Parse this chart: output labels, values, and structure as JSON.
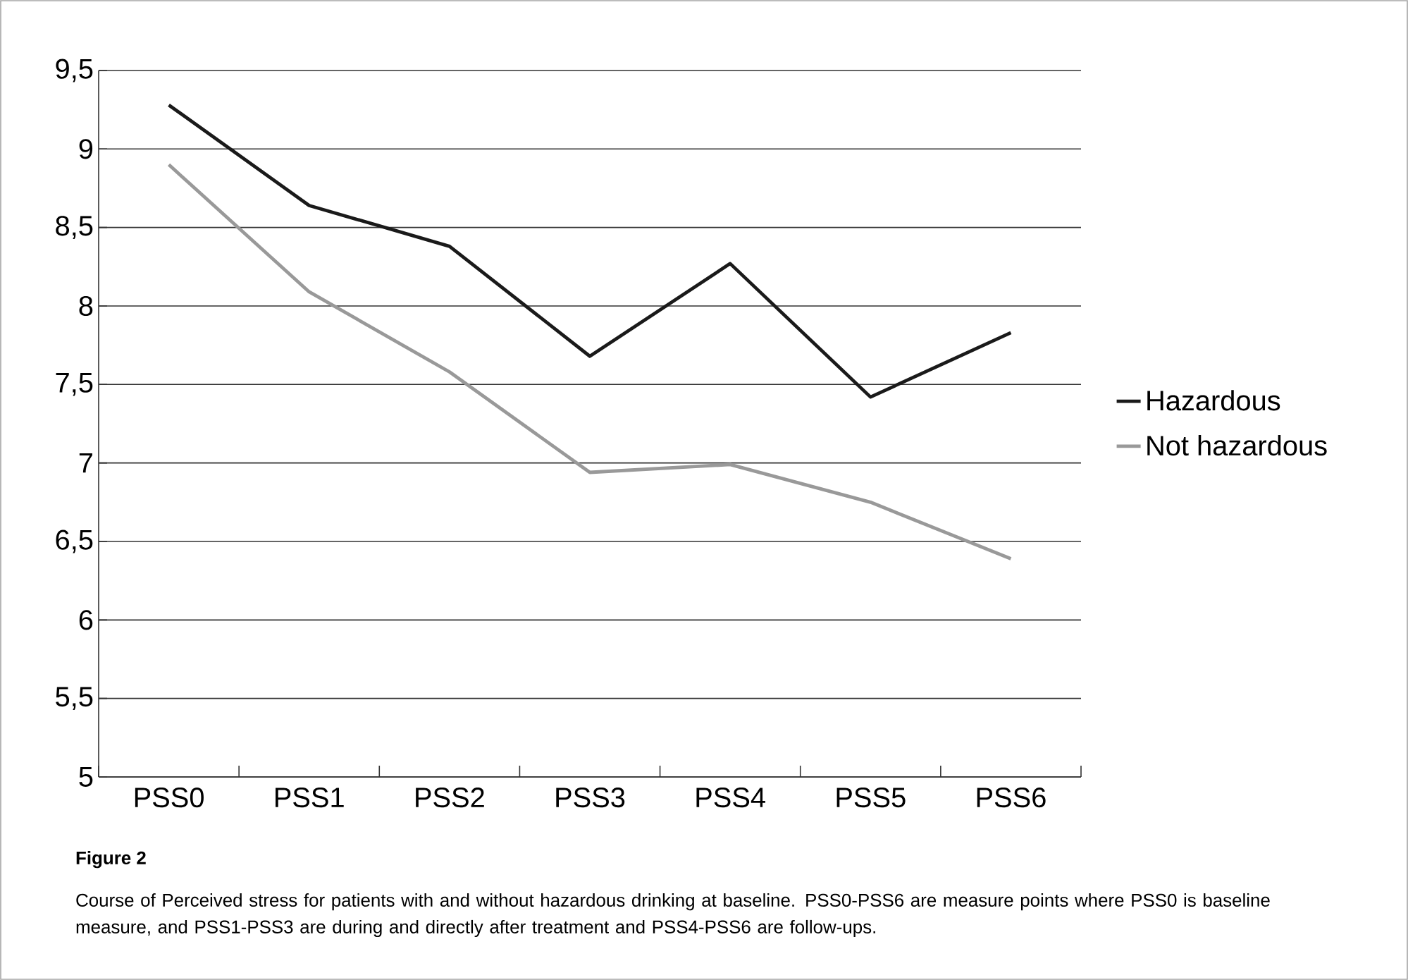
{
  "chart_data": {
    "type": "line",
    "categories": [
      "PSS0",
      "PSS1",
      "PSS2",
      "PSS3",
      "PSS4",
      "PSS5",
      "PSS6"
    ],
    "series": [
      {
        "name": "Hazardous",
        "color": "#1a1a1a",
        "values": [
          9.28,
          8.64,
          8.38,
          7.68,
          8.27,
          7.42,
          7.83
        ]
      },
      {
        "name": "Not hazardous",
        "color": "#999999",
        "values": [
          8.9,
          8.09,
          7.58,
          6.94,
          6.99,
          6.75,
          6.39
        ]
      }
    ],
    "ylim": [
      5,
      9.5
    ],
    "yticks": [
      5,
      {
        "value": 5.5,
        "label": "5,5"
      },
      6,
      {
        "value": 6.5,
        "label": "6,5"
      },
      7,
      {
        "value": 7.5,
        "label": "7,5"
      },
      8,
      {
        "value": 8.5,
        "label": "8,5"
      },
      9,
      {
        "value": 9.5,
        "label": "9,5"
      }
    ],
    "grid": "y",
    "legend": "right",
    "marker": "none",
    "line_style": "solid",
    "annotations": [
      "Figure 2",
      "Course of Perceived stress for patients with and without hazardous drinking at baseline. PSS0-PSS6 are measure points where PSS0 is baseline measure, and PSS1-PSS3 are during and directly after treatment and PSS4-PSS6 are follow-ups."
    ]
  }
}
